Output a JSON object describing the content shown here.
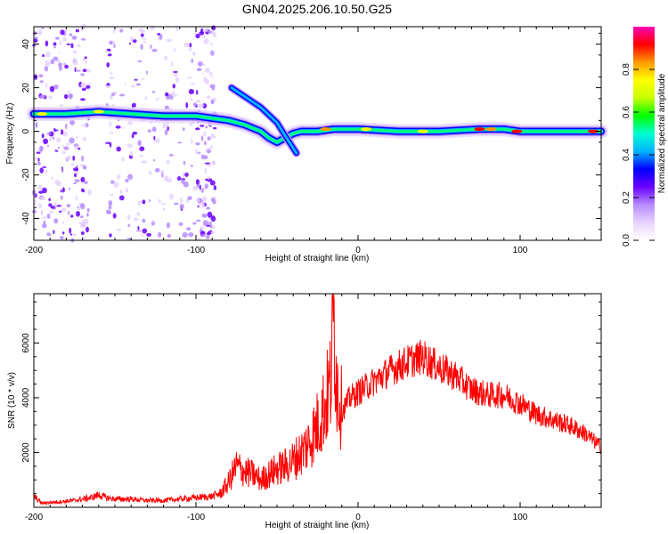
{
  "title": "GN04.2025.206.10.50.G25",
  "chart_data": [
    {
      "type": "heatmap",
      "xlabel": "Height of straight line (km)",
      "ylabel": "Frequency (Hz)",
      "xlim": [
        -200,
        150
      ],
      "ylim": [
        -50,
        48
      ],
      "xticks": [
        -200,
        -100,
        0,
        100
      ],
      "yticks": [
        -40,
        -20,
        0,
        20,
        40
      ],
      "colorbar": {
        "label": "Normalized spectral amplitude",
        "range": [
          0,
          1
        ],
        "ticks": [
          0.0,
          0.2,
          0.4,
          0.6,
          0.8
        ],
        "tick_labels": [
          "0.0",
          "0.2",
          "0.4",
          "0.6",
          "0.8"
        ],
        "colormap": [
          "#ffffff",
          "#e6d4ff",
          "#b68cff",
          "#6a00ff",
          "#0000ff",
          "#00b4ff",
          "#00ffd0",
          "#00ff00",
          "#c8ff00",
          "#ffff00",
          "#ff9900",
          "#ff0000",
          "#ff00b4"
        ]
      },
      "ridge": [
        {
          "x": -200,
          "y": 8
        },
        {
          "x": -180,
          "y": 8
        },
        {
          "x": -160,
          "y": 9
        },
        {
          "x": -140,
          "y": 8
        },
        {
          "x": -120,
          "y": 7
        },
        {
          "x": -100,
          "y": 7
        },
        {
          "x": -90,
          "y": 6
        },
        {
          "x": -80,
          "y": 5
        },
        {
          "x": -70,
          "y": 3
        },
        {
          "x": -60,
          "y": 0
        },
        {
          "x": -55,
          "y": -3
        },
        {
          "x": -50,
          "y": -5
        },
        {
          "x": -40,
          "y": -1
        },
        {
          "x": -35,
          "y": 0
        },
        {
          "x": -25,
          "y": 0
        },
        {
          "x": -15,
          "y": 1
        },
        {
          "x": 0,
          "y": 1
        },
        {
          "x": 25,
          "y": 0
        },
        {
          "x": 50,
          "y": 0
        },
        {
          "x": 75,
          "y": 1
        },
        {
          "x": 90,
          "y": 1
        },
        {
          "x": 100,
          "y": 0
        },
        {
          "x": 125,
          "y": 0
        },
        {
          "x": 150,
          "y": 0
        }
      ],
      "secondary_ridge": [
        {
          "x": -78,
          "y": 20
        },
        {
          "x": -70,
          "y": 16
        },
        {
          "x": -60,
          "y": 11
        },
        {
          "x": -50,
          "y": 4
        },
        {
          "x": -45,
          "y": -2
        },
        {
          "x": -38,
          "y": -10
        }
      ]
    },
    {
      "type": "line",
      "xlabel": "Height of straight line (km)",
      "ylabel": "SNR (10 * v/v)",
      "xlim": [
        -200,
        150
      ],
      "ylim": [
        0,
        7800
      ],
      "xticks": [
        -200,
        -100,
        0,
        100
      ],
      "yticks": [
        2000,
        4000,
        6000
      ],
      "color": "#ff0000",
      "series": [
        {
          "x": [
            -200,
            -195,
            -185,
            -175,
            -165,
            -160,
            -155,
            -150,
            -140,
            -130,
            -120,
            -110,
            -100,
            -90,
            -85,
            -80,
            -75,
            -70,
            -65,
            -60,
            -55,
            -50,
            -45,
            -40,
            -35,
            -30,
            -25,
            -20,
            -17,
            -15,
            -13,
            -10,
            -5,
            0,
            5,
            10,
            20,
            30,
            40,
            50,
            60,
            70,
            80,
            90,
            100,
            110,
            120,
            130,
            140,
            150
          ],
          "y": [
            400,
            150,
            200,
            250,
            350,
            450,
            350,
            300,
            300,
            250,
            250,
            300,
            350,
            400,
            500,
            900,
            1500,
            1300,
            1200,
            1000,
            1200,
            1400,
            1500,
            1700,
            2000,
            2400,
            3000,
            3800,
            4500,
            7000,
            4500,
            3500,
            4000,
            4200,
            4400,
            4600,
            5000,
            5300,
            5500,
            5100,
            4800,
            4300,
            4100,
            4100,
            3800,
            3400,
            3200,
            3000,
            2700,
            2200
          ]
        }
      ]
    }
  ]
}
